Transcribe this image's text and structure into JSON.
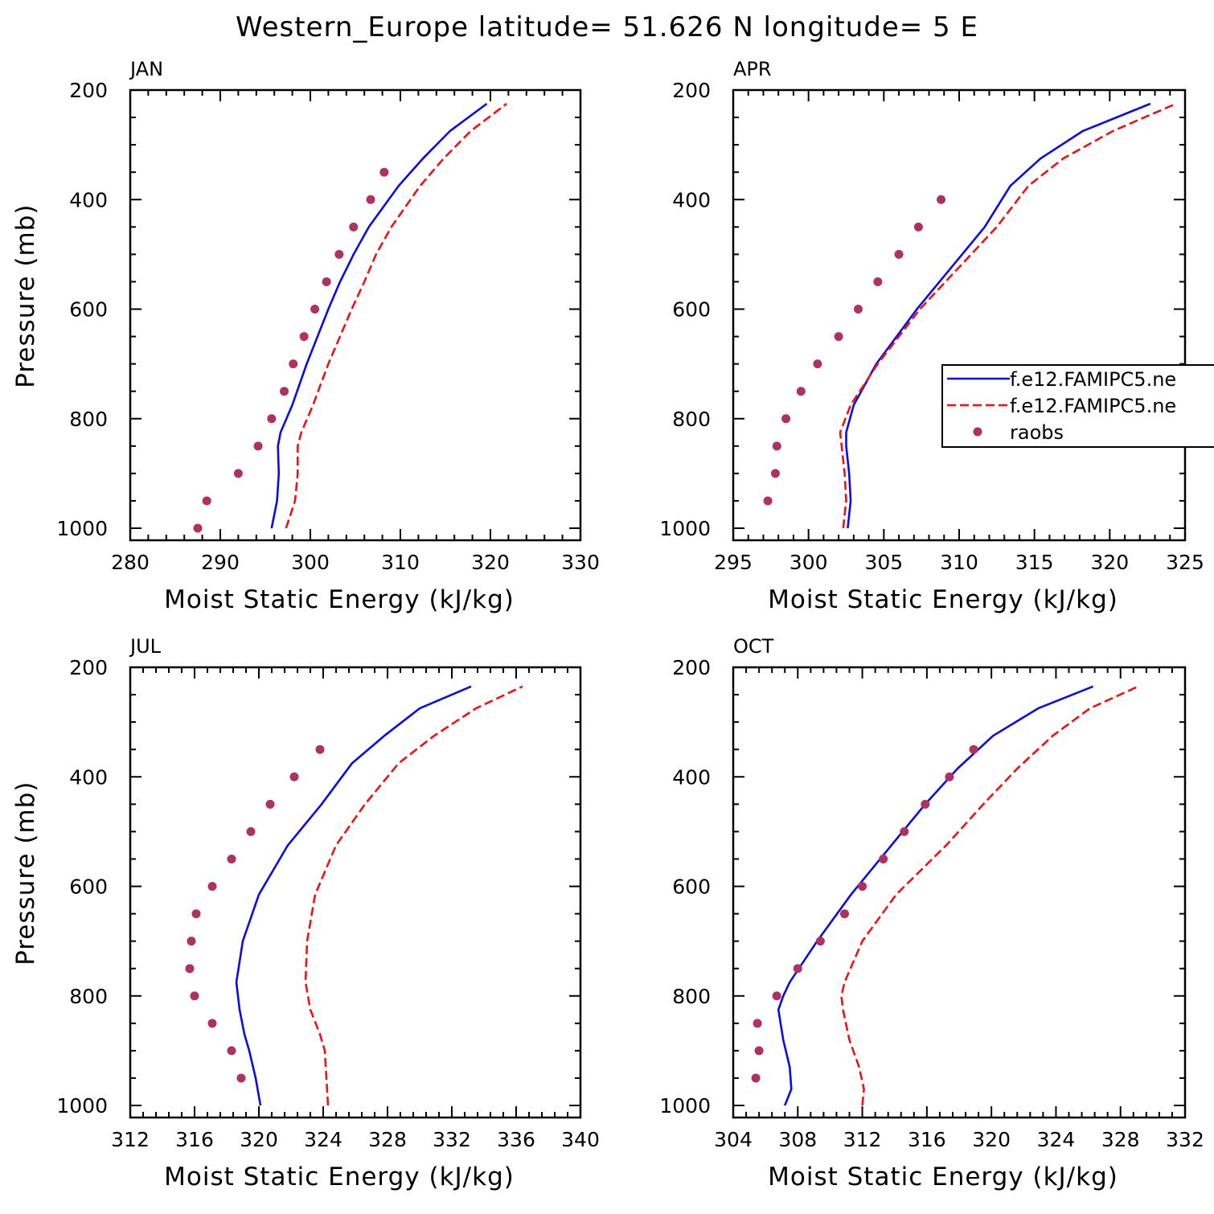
{
  "title": "Western_Europe  latitude= 51.626 N longitude= 5 E",
  "colors": {
    "model1": "#0a0aea",
    "model2": "#f21010",
    "raobs": "#b03060"
  },
  "legend": {
    "entries": [
      {
        "label": "f.e12.FAMIPC5.ne",
        "style": "solid",
        "color": "#0a0aea"
      },
      {
        "label": "f.e12.FAMIPC5.ne",
        "style": "dashed",
        "color": "#f21010"
      },
      {
        "label": "raobs",
        "style": "marker",
        "color": "#b03060"
      }
    ],
    "location": "APR panel, right edge, clipped by figure border"
  },
  "chart_data": [
    {
      "type": "line",
      "panel": "JAN",
      "xlabel": "Moist Static Energy (kJ/kg)",
      "ylabel": "Pressure (mb)",
      "xlim": [
        280,
        330
      ],
      "ylim": [
        1000,
        200
      ],
      "xticks": [
        280,
        290,
        300,
        310,
        320,
        330
      ],
      "yticks": [
        200,
        400,
        600,
        800,
        1000
      ],
      "series": [
        {
          "name": "model1",
          "style": "solid",
          "p": [
            1000,
            950,
            900,
            850,
            825,
            775,
            700,
            600,
            550,
            500,
            450,
            375,
            325,
            275,
            225
          ],
          "values": [
            295.7,
            296.3,
            296.5,
            296.4,
            296.7,
            298.0,
            299.6,
            302.0,
            303.3,
            304.8,
            306.5,
            309.8,
            312.5,
            315.5,
            319.6
          ]
        },
        {
          "name": "model2",
          "style": "dashed",
          "p": [
            1000,
            950,
            900,
            850,
            825,
            775,
            700,
            600,
            550,
            500,
            450,
            375,
            325,
            275,
            225
          ],
          "values": [
            297.3,
            298.3,
            298.6,
            298.6,
            299.0,
            300.3,
            302.0,
            304.6,
            306.0,
            307.3,
            309.0,
            312.2,
            314.8,
            317.8,
            321.8
          ]
        },
        {
          "name": "raobs",
          "style": "marker",
          "p": [
            1000,
            950,
            900,
            850,
            800,
            750,
            700,
            650,
            600,
            550,
            500,
            450,
            400,
            350
          ],
          "values": [
            287.5,
            288.5,
            292.0,
            294.2,
            295.7,
            297.1,
            298.1,
            299.3,
            300.5,
            301.8,
            303.2,
            304.8,
            306.7,
            308.2
          ]
        }
      ]
    },
    {
      "type": "line",
      "panel": "APR",
      "xlabel": "Moist Static Energy (kJ/kg)",
      "ylabel": "",
      "xlim": [
        295,
        325
      ],
      "ylim": [
        1000,
        200
      ],
      "xticks": [
        295,
        300,
        305,
        310,
        315,
        320,
        325
      ],
      "yticks": [
        200,
        400,
        600,
        800,
        1000
      ],
      "series": [
        {
          "name": "model1",
          "style": "solid",
          "p": [
            1000,
            950,
            900,
            850,
            825,
            775,
            700,
            600,
            550,
            500,
            450,
            375,
            325,
            275,
            225
          ],
          "values": [
            302.6,
            302.8,
            302.7,
            302.5,
            302.5,
            303.0,
            304.5,
            307.2,
            308.7,
            310.2,
            311.7,
            313.4,
            315.4,
            318.2,
            322.7
          ]
        },
        {
          "name": "model2",
          "style": "dashed",
          "p": [
            1000,
            950,
            900,
            850,
            825,
            775,
            700,
            600,
            550,
            500,
            450,
            375,
            325,
            275,
            225
          ],
          "values": [
            302.3,
            302.5,
            302.4,
            302.2,
            302.1,
            302.8,
            304.6,
            307.4,
            309.1,
            310.8,
            312.5,
            314.6,
            316.9,
            320.2,
            324.4
          ]
        },
        {
          "name": "raobs",
          "style": "marker",
          "p": [
            950,
            900,
            850,
            800,
            750,
            700,
            650,
            600,
            550,
            500,
            450,
            400
          ],
          "values": [
            297.3,
            297.8,
            297.9,
            298.5,
            299.5,
            300.6,
            302.0,
            303.3,
            304.6,
            306.0,
            307.3,
            308.8
          ]
        }
      ]
    },
    {
      "type": "line",
      "panel": "JUL",
      "xlabel": "Moist Static Energy (kJ/kg)",
      "ylabel": "Pressure (mb)",
      "xlim": [
        312,
        340
      ],
      "ylim": [
        1000,
        200
      ],
      "xticks": [
        312,
        316,
        320,
        324,
        328,
        332,
        336,
        340
      ],
      "yticks": [
        200,
        400,
        600,
        800,
        1000
      ],
      "series": [
        {
          "name": "model1",
          "style": "solid",
          "p": [
            1000,
            950,
            900,
            870,
            825,
            775,
            700,
            615,
            525,
            450,
            375,
            325,
            275,
            235
          ],
          "values": [
            320.1,
            319.8,
            319.4,
            319.1,
            318.8,
            318.6,
            319.0,
            320.0,
            321.8,
            323.9,
            325.8,
            327.8,
            330.0,
            333.2
          ]
        },
        {
          "name": "model2",
          "style": "dashed",
          "p": [
            1000,
            950,
            900,
            870,
            825,
            775,
            700,
            615,
            525,
            450,
            375,
            325,
            275,
            235
          ],
          "values": [
            324.3,
            324.2,
            324.1,
            323.8,
            323.2,
            322.9,
            323.0,
            323.5,
            324.8,
            326.6,
            328.7,
            330.9,
            333.5,
            336.4
          ]
        },
        {
          "name": "raobs",
          "style": "marker",
          "p": [
            950,
            900,
            850,
            800,
            750,
            700,
            650,
            600,
            550,
            500,
            450,
            400,
            350
          ],
          "values": [
            318.9,
            318.3,
            317.1,
            316.0,
            315.7,
            315.8,
            316.1,
            317.1,
            318.3,
            319.5,
            320.7,
            322.2,
            323.8
          ]
        }
      ]
    },
    {
      "type": "line",
      "panel": "OCT",
      "xlabel": "Moist Static Energy (kJ/kg)",
      "ylabel": "",
      "xlim": [
        304,
        332
      ],
      "ylim": [
        1000,
        200
      ],
      "xticks": [
        304,
        308,
        312,
        316,
        320,
        324,
        328,
        332
      ],
      "yticks": [
        200,
        400,
        600,
        800,
        1000
      ],
      "series": [
        {
          "name": "model1",
          "style": "solid",
          "p": [
            1000,
            970,
            930,
            880,
            825,
            800,
            775,
            700,
            615,
            525,
            450,
            385,
            325,
            275,
            235
          ],
          "values": [
            307.2,
            307.6,
            307.5,
            307.1,
            306.8,
            307.1,
            307.5,
            309.2,
            311.3,
            313.8,
            315.9,
            317.9,
            320.1,
            322.9,
            326.3
          ]
        },
        {
          "name": "model2",
          "style": "dashed",
          "p": [
            1000,
            970,
            930,
            880,
            825,
            800,
            775,
            700,
            615,
            525,
            450,
            385,
            325,
            275,
            235
          ],
          "values": [
            312.0,
            312.1,
            311.8,
            311.2,
            310.8,
            310.7,
            310.9,
            312.0,
            314.1,
            317.2,
            319.5,
            321.6,
            323.8,
            326.1,
            329.1
          ]
        },
        {
          "name": "raobs",
          "style": "marker",
          "p": [
            950,
            900,
            850,
            800,
            750,
            700,
            650,
            600,
            550,
            500,
            450,
            400,
            350
          ],
          "values": [
            305.4,
            305.6,
            305.5,
            306.7,
            308.0,
            309.4,
            310.9,
            312.0,
            313.3,
            314.6,
            315.9,
            317.4,
            318.9
          ]
        }
      ]
    }
  ]
}
